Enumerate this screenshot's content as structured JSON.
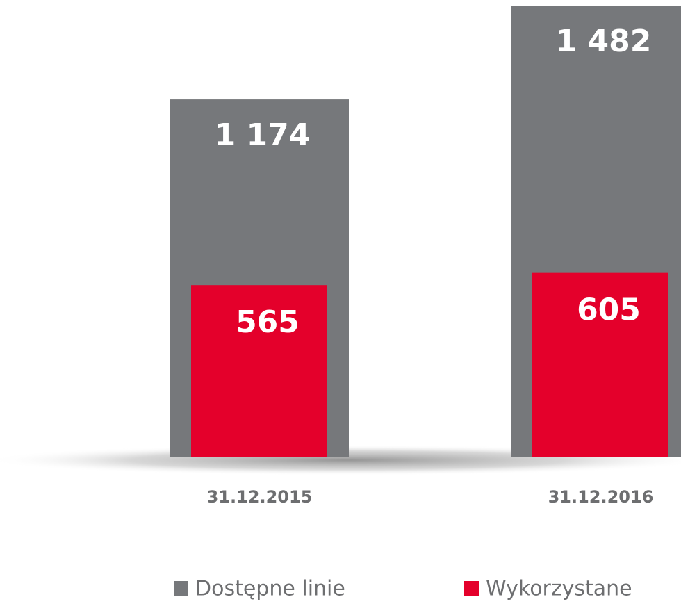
{
  "chart_data": {
    "type": "bar",
    "categories": [
      "31.12.2015",
      "31.12.2016"
    ],
    "series": [
      {
        "name": "Dostępne linie",
        "color": "#76787b",
        "values": [
          1174,
          1482
        ],
        "value_labels": [
          "1 174",
          "1 482"
        ]
      },
      {
        "name": "Wykorzystane",
        "color": "#e4002b",
        "values": [
          565,
          605
        ],
        "value_labels": [
          "565",
          "605"
        ]
      }
    ]
  }
}
